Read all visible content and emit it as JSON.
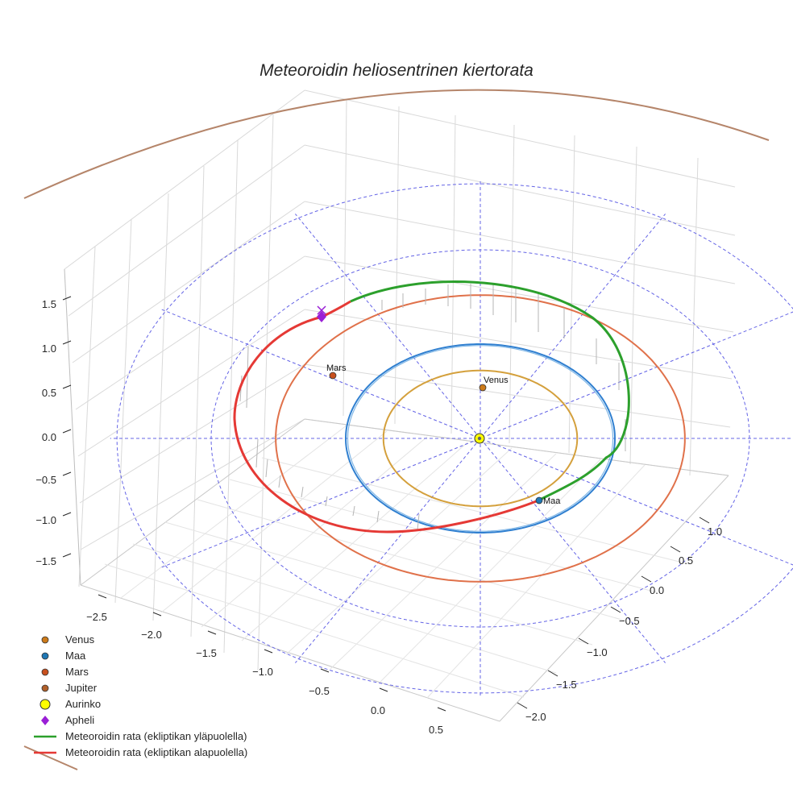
{
  "chart_data": {
    "type": "line",
    "projection": "3d",
    "title": "Meteoroidin heliosentrinen kiertorata",
    "axes": {
      "x": {
        "ticks": [
          -2.5,
          -2.0,
          -1.5,
          -1.0,
          -0.5,
          0.0,
          0.5
        ],
        "labels": [
          "−2.5",
          "−2.0",
          "−1.5",
          "−1.0",
          "−0.5",
          "0.0",
          "0.5"
        ]
      },
      "y": {
        "ticks": [
          -2.0,
          -1.5,
          -1.0,
          -0.5,
          0.0,
          0.5,
          1.0
        ],
        "labels": [
          "−2.0",
          "−1.5",
          "−1.0",
          "−0.5",
          "0.0",
          "0.5",
          "1.0"
        ]
      },
      "z": {
        "ticks": [
          -1.5,
          -1.0,
          -0.5,
          0.0,
          0.5,
          1.0,
          1.5
        ],
        "labels": [
          "−1.5",
          "−1.0",
          "−0.5",
          "0.0",
          "0.5",
          "1.0",
          "1.5"
        ]
      }
    },
    "series": [
      {
        "name": "Venus",
        "kind": "orbit",
        "radius_au": 0.72,
        "color": "#d4a03c",
        "marker_color": "#cc7a1a",
        "label": "Venus"
      },
      {
        "name": "Maa",
        "kind": "orbit",
        "radius_au": 1.0,
        "color": "#2f7fd0",
        "marker_color": "#1f77b4",
        "label": "Maa"
      },
      {
        "name": "Mars",
        "kind": "orbit",
        "radius_au": 1.52,
        "color": "#e0714a",
        "marker_color": "#c8501e",
        "label": "Mars"
      },
      {
        "name": "Jupiter",
        "kind": "orbit",
        "radius_au": 5.2,
        "color": "#b5856a",
        "marker_color": "#b0602a"
      },
      {
        "name": "Aurinko",
        "kind": "point",
        "color": "#ffff00"
      },
      {
        "name": "Apheli",
        "kind": "point",
        "color": "#9a1fd6",
        "marker": "diamond"
      },
      {
        "name": "Meteoroidin rata (ekliptikan yläpuolella)",
        "kind": "trajectory",
        "color": "#2ca02c"
      },
      {
        "name": "Meteoroidin rata (ekliptikan alapuolella)",
        "kind": "trajectory",
        "color": "#e53935"
      }
    ],
    "reference_circles_au": [
      2.0,
      2.7
    ],
    "legend_position": "bottom-left",
    "legend": [
      {
        "label": "Venus",
        "marker": "circle",
        "color": "#cc7a1a"
      },
      {
        "label": "Maa",
        "marker": "circle",
        "color": "#1f77b4"
      },
      {
        "label": "Mars",
        "marker": "circle",
        "color": "#c8501e"
      },
      {
        "label": "Jupiter",
        "marker": "circle",
        "color": "#b0602a"
      },
      {
        "label": "Aurinko",
        "marker": "circle-large",
        "color": "#ffff00"
      },
      {
        "label": "Apheli",
        "marker": "diamond",
        "color": "#9a1fd6"
      },
      {
        "label": "Meteoroidin rata (ekliptikan yläpuolella)",
        "marker": "line",
        "color": "#2ca02c"
      },
      {
        "label": "Meteoroidin rata (ekliptikan alapuolella)",
        "marker": "line",
        "color": "#e53935"
      }
    ]
  }
}
